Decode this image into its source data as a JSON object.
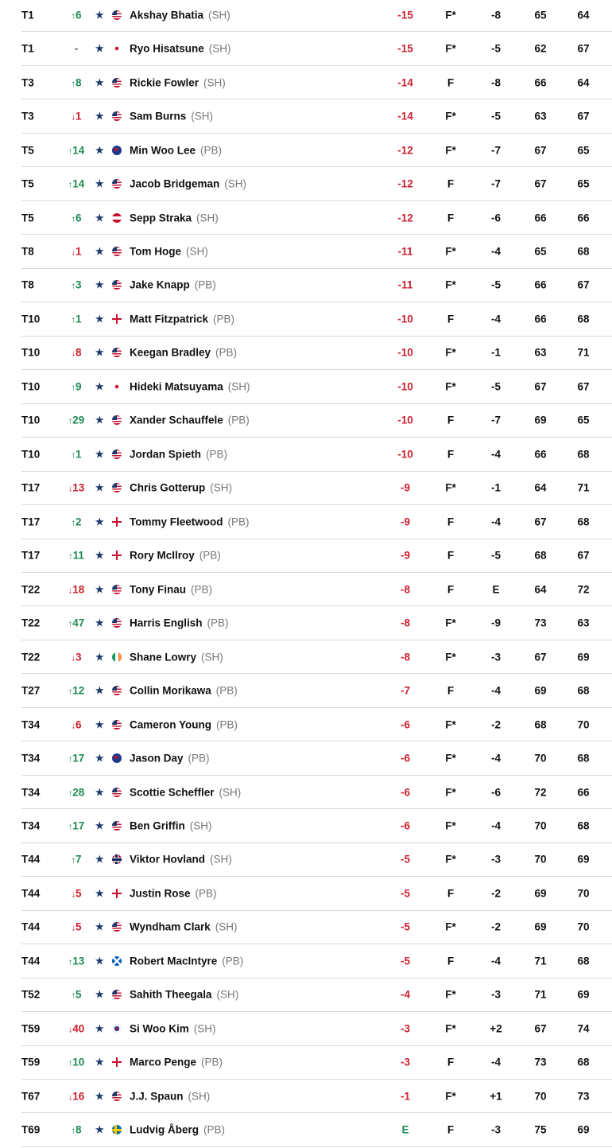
{
  "colors": {
    "up": "#1f8a55",
    "down": "#cc1f2d",
    "under_par": "#cc1f2d",
    "even": "#1f8a55",
    "favorite_star": "#1b3a6b"
  },
  "icons": {
    "favorite": "star-icon",
    "up": "arrow-up-icon",
    "down": "arrow-down-icon"
  },
  "rows": [
    {
      "pos": "T1",
      "dir": "up",
      "move": "6",
      "flag": "us",
      "name": "Akshay Bhatia",
      "tee": "(SH)",
      "total": "-15",
      "thru": "F*",
      "today": "-8",
      "r1": "65",
      "r2": "64"
    },
    {
      "pos": "T1",
      "dir": "none",
      "move": "-",
      "flag": "jp",
      "name": "Ryo Hisatsune",
      "tee": "(SH)",
      "total": "-15",
      "thru": "F*",
      "today": "-5",
      "r1": "62",
      "r2": "67"
    },
    {
      "pos": "T3",
      "dir": "up",
      "move": "8",
      "flag": "us",
      "name": "Rickie Fowler",
      "tee": "(SH)",
      "total": "-14",
      "thru": "F",
      "today": "-8",
      "r1": "66",
      "r2": "64"
    },
    {
      "pos": "T3",
      "dir": "down",
      "move": "1",
      "flag": "us",
      "name": "Sam Burns",
      "tee": "(SH)",
      "total": "-14",
      "thru": "F*",
      "today": "-5",
      "r1": "63",
      "r2": "67"
    },
    {
      "pos": "T5",
      "dir": "up",
      "move": "14",
      "flag": "au",
      "name": "Min Woo Lee",
      "tee": "(PB)",
      "total": "-12",
      "thru": "F*",
      "today": "-7",
      "r1": "67",
      "r2": "65"
    },
    {
      "pos": "T5",
      "dir": "up",
      "move": "14",
      "flag": "us",
      "name": "Jacob Bridgeman",
      "tee": "(SH)",
      "total": "-12",
      "thru": "F",
      "today": "-7",
      "r1": "67",
      "r2": "65"
    },
    {
      "pos": "T5",
      "dir": "up",
      "move": "6",
      "flag": "at",
      "name": "Sepp Straka",
      "tee": "(SH)",
      "total": "-12",
      "thru": "F",
      "today": "-6",
      "r1": "66",
      "r2": "66"
    },
    {
      "pos": "T8",
      "dir": "down",
      "move": "1",
      "flag": "us",
      "name": "Tom Hoge",
      "tee": "(SH)",
      "total": "-11",
      "thru": "F*",
      "today": "-4",
      "r1": "65",
      "r2": "68"
    },
    {
      "pos": "T8",
      "dir": "up",
      "move": "3",
      "flag": "us",
      "name": "Jake Knapp",
      "tee": "(PB)",
      "total": "-11",
      "thru": "F*",
      "today": "-5",
      "r1": "66",
      "r2": "67"
    },
    {
      "pos": "T10",
      "dir": "up",
      "move": "1",
      "flag": "eng",
      "name": "Matt Fitzpatrick",
      "tee": "(PB)",
      "total": "-10",
      "thru": "F",
      "today": "-4",
      "r1": "66",
      "r2": "68"
    },
    {
      "pos": "T10",
      "dir": "down",
      "move": "8",
      "flag": "us",
      "name": "Keegan Bradley",
      "tee": "(PB)",
      "total": "-10",
      "thru": "F*",
      "today": "-1",
      "r1": "63",
      "r2": "71"
    },
    {
      "pos": "T10",
      "dir": "up",
      "move": "9",
      "flag": "jp",
      "name": "Hideki Matsuyama",
      "tee": "(SH)",
      "total": "-10",
      "thru": "F*",
      "today": "-5",
      "r1": "67",
      "r2": "67"
    },
    {
      "pos": "T10",
      "dir": "up",
      "move": "29",
      "flag": "us",
      "name": "Xander Schauffele",
      "tee": "(PB)",
      "total": "-10",
      "thru": "F",
      "today": "-7",
      "r1": "69",
      "r2": "65"
    },
    {
      "pos": "T10",
      "dir": "up",
      "move": "1",
      "flag": "us",
      "name": "Jordan Spieth",
      "tee": "(PB)",
      "total": "-10",
      "thru": "F",
      "today": "-4",
      "r1": "66",
      "r2": "68"
    },
    {
      "pos": "T17",
      "dir": "down",
      "move": "13",
      "flag": "us",
      "name": "Chris Gotterup",
      "tee": "(SH)",
      "total": "-9",
      "thru": "F*",
      "today": "-1",
      "r1": "64",
      "r2": "71"
    },
    {
      "pos": "T17",
      "dir": "up",
      "move": "2",
      "flag": "eng",
      "name": "Tommy Fleetwood",
      "tee": "(PB)",
      "total": "-9",
      "thru": "F",
      "today": "-4",
      "r1": "67",
      "r2": "68"
    },
    {
      "pos": "T17",
      "dir": "up",
      "move": "11",
      "flag": "nir",
      "name": "Rory McIlroy",
      "tee": "(PB)",
      "total": "-9",
      "thru": "F",
      "today": "-5",
      "r1": "68",
      "r2": "67"
    },
    {
      "pos": "T22",
      "dir": "down",
      "move": "18",
      "flag": "us",
      "name": "Tony Finau",
      "tee": "(PB)",
      "total": "-8",
      "thru": "F",
      "today": "E",
      "r1": "64",
      "r2": "72"
    },
    {
      "pos": "T22",
      "dir": "up",
      "move": "47",
      "flag": "us",
      "name": "Harris English",
      "tee": "(PB)",
      "total": "-8",
      "thru": "F*",
      "today": "-9",
      "r1": "73",
      "r2": "63"
    },
    {
      "pos": "T22",
      "dir": "down",
      "move": "3",
      "flag": "ie",
      "name": "Shane Lowry",
      "tee": "(SH)",
      "total": "-8",
      "thru": "F*",
      "today": "-3",
      "r1": "67",
      "r2": "69"
    },
    {
      "pos": "T27",
      "dir": "up",
      "move": "12",
      "flag": "us",
      "name": "Collin Morikawa",
      "tee": "(PB)",
      "total": "-7",
      "thru": "F",
      "today": "-4",
      "r1": "69",
      "r2": "68"
    },
    {
      "pos": "T34",
      "dir": "down",
      "move": "6",
      "flag": "us",
      "name": "Cameron Young",
      "tee": "(PB)",
      "total": "-6",
      "thru": "F*",
      "today": "-2",
      "r1": "68",
      "r2": "70"
    },
    {
      "pos": "T34",
      "dir": "up",
      "move": "17",
      "flag": "au",
      "name": "Jason Day",
      "tee": "(PB)",
      "total": "-6",
      "thru": "F*",
      "today": "-4",
      "r1": "70",
      "r2": "68"
    },
    {
      "pos": "T34",
      "dir": "up",
      "move": "28",
      "flag": "us",
      "name": "Scottie Scheffler",
      "tee": "(SH)",
      "total": "-6",
      "thru": "F*",
      "today": "-6",
      "r1": "72",
      "r2": "66"
    },
    {
      "pos": "T34",
      "dir": "up",
      "move": "17",
      "flag": "us",
      "name": "Ben Griffin",
      "tee": "(SH)",
      "total": "-6",
      "thru": "F*",
      "today": "-4",
      "r1": "70",
      "r2": "68"
    },
    {
      "pos": "T44",
      "dir": "up",
      "move": "7",
      "flag": "no",
      "name": "Viktor Hovland",
      "tee": "(SH)",
      "total": "-5",
      "thru": "F*",
      "today": "-3",
      "r1": "70",
      "r2": "69"
    },
    {
      "pos": "T44",
      "dir": "down",
      "move": "5",
      "flag": "eng",
      "name": "Justin Rose",
      "tee": "(PB)",
      "total": "-5",
      "thru": "F",
      "today": "-2",
      "r1": "69",
      "r2": "70"
    },
    {
      "pos": "T44",
      "dir": "down",
      "move": "5",
      "flag": "us",
      "name": "Wyndham Clark",
      "tee": "(SH)",
      "total": "-5",
      "thru": "F*",
      "today": "-2",
      "r1": "69",
      "r2": "70"
    },
    {
      "pos": "T44",
      "dir": "up",
      "move": "13",
      "flag": "sco",
      "name": "Robert MacIntyre",
      "tee": "(PB)",
      "total": "-5",
      "thru": "F",
      "today": "-4",
      "r1": "71",
      "r2": "68"
    },
    {
      "pos": "T52",
      "dir": "up",
      "move": "5",
      "flag": "us",
      "name": "Sahith Theegala",
      "tee": "(SH)",
      "total": "-4",
      "thru": "F*",
      "today": "-3",
      "r1": "71",
      "r2": "69"
    },
    {
      "pos": "T59",
      "dir": "down",
      "move": "40",
      "flag": "kr",
      "name": "Si Woo Kim",
      "tee": "(SH)",
      "total": "-3",
      "thru": "F*",
      "today": "+2",
      "r1": "67",
      "r2": "74"
    },
    {
      "pos": "T59",
      "dir": "up",
      "move": "10",
      "flag": "eng",
      "name": "Marco Penge",
      "tee": "(PB)",
      "total": "-3",
      "thru": "F",
      "today": "-4",
      "r1": "73",
      "r2": "68"
    },
    {
      "pos": "T67",
      "dir": "down",
      "move": "16",
      "flag": "us",
      "name": "J.J. Spaun",
      "tee": "(SH)",
      "total": "-1",
      "thru": "F*",
      "today": "+1",
      "r1": "70",
      "r2": "73"
    },
    {
      "pos": "T69",
      "dir": "up",
      "move": "8",
      "flag": "se",
      "name": "Ludvig Åberg",
      "tee": "(PB)",
      "total": "E",
      "thru": "F",
      "today": "-3",
      "r1": "75",
      "r2": "69"
    }
  ]
}
